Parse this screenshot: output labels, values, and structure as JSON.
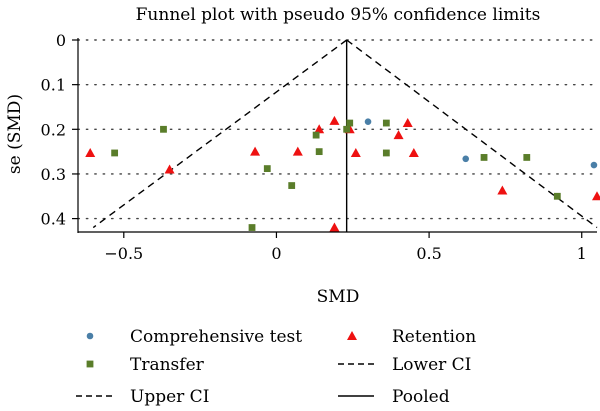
{
  "chart_data": {
    "type": "scatter",
    "title": "Funnel plot with pseudo 95% confidence limits",
    "xlabel": "SMD",
    "ylabel": "se (SMD)",
    "xlim": [
      -0.65,
      1.05
    ],
    "ylim": [
      0,
      0.43
    ],
    "y_inverted": true,
    "xticks": [
      -0.5,
      0,
      0.5,
      1
    ],
    "xtick_labels": [
      "−0.5",
      "0",
      "0.5",
      "1"
    ],
    "yticks": [
      0,
      0.1,
      0.2,
      0.3,
      0.4
    ],
    "ytick_labels": [
      "0",
      "0.1",
      "0.2",
      "0.3",
      "0.4"
    ],
    "grid": "horizontal dotted at y ticks",
    "legend_position": "bottom",
    "pooled": 0.23,
    "series": [
      {
        "name": "Comprehensive test",
        "marker": "circle",
        "color": "#4a7fa7",
        "points": [
          {
            "x": 0.3,
            "y": 0.183
          },
          {
            "x": 0.62,
            "y": 0.266
          },
          {
            "x": 1.04,
            "y": 0.28
          }
        ]
      },
      {
        "name": "Retention",
        "marker": "triangle",
        "color": "#ee1111",
        "points": [
          {
            "x": -0.61,
            "y": 0.253
          },
          {
            "x": -0.35,
            "y": 0.29
          },
          {
            "x": -0.07,
            "y": 0.25
          },
          {
            "x": 0.07,
            "y": 0.25
          },
          {
            "x": 0.14,
            "y": 0.2
          },
          {
            "x": 0.19,
            "y": 0.181
          },
          {
            "x": 0.19,
            "y": 0.42
          },
          {
            "x": 0.24,
            "y": 0.2
          },
          {
            "x": 0.26,
            "y": 0.253
          },
          {
            "x": 0.4,
            "y": 0.213
          },
          {
            "x": 0.43,
            "y": 0.186
          },
          {
            "x": 0.45,
            "y": 0.253
          },
          {
            "x": 0.74,
            "y": 0.337
          },
          {
            "x": 1.05,
            "y": 0.35
          }
        ]
      },
      {
        "name": "Transfer",
        "marker": "square",
        "color": "#5a7d2a",
        "points": [
          {
            "x": -0.53,
            "y": 0.253
          },
          {
            "x": -0.37,
            "y": 0.2
          },
          {
            "x": -0.08,
            "y": 0.42
          },
          {
            "x": -0.03,
            "y": 0.288
          },
          {
            "x": 0.05,
            "y": 0.326
          },
          {
            "x": 0.13,
            "y": 0.213
          },
          {
            "x": 0.14,
            "y": 0.25
          },
          {
            "x": 0.23,
            "y": 0.2
          },
          {
            "x": 0.24,
            "y": 0.186
          },
          {
            "x": 0.36,
            "y": 0.186
          },
          {
            "x": 0.36,
            "y": 0.253
          },
          {
            "x": 0.68,
            "y": 0.263
          },
          {
            "x": 0.82,
            "y": 0.263
          },
          {
            "x": 0.92,
            "y": 0.35
          }
        ]
      }
    ],
    "lines": [
      {
        "name": "Lower CI",
        "style": "dashed",
        "from": {
          "x": 0.23,
          "y": 0
        },
        "to": {
          "x": -0.6,
          "y": 0.42
        }
      },
      {
        "name": "Upper CI",
        "style": "dashed",
        "from": {
          "x": 0.23,
          "y": 0
        },
        "to": {
          "x": 1.05,
          "y": 0.42
        }
      },
      {
        "name": "Pooled",
        "style": "solid",
        "from": {
          "x": 0.23,
          "y": 0
        },
        "to": {
          "x": 0.23,
          "y": 0.43
        }
      }
    ],
    "legend": [
      {
        "label": "Comprehensive test",
        "marker": "circle"
      },
      {
        "label": "Retention",
        "marker": "triangle"
      },
      {
        "label": "Transfer",
        "marker": "square"
      },
      {
        "label": "Lower CI",
        "marker": "dashed-line"
      },
      {
        "label": "Upper CI",
        "marker": "dashed-line"
      },
      {
        "label": "Pooled",
        "marker": "solid-line"
      }
    ]
  }
}
